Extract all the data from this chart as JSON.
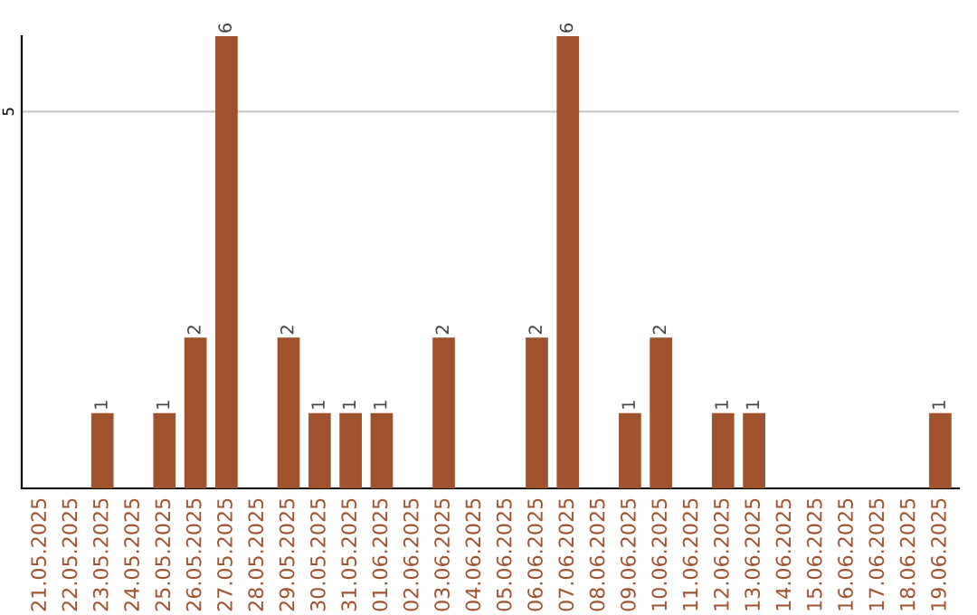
{
  "chart_data": {
    "type": "bar",
    "categories": [
      "21.05.2025",
      "22.05.2025",
      "23.05.2025",
      "24.05.2025",
      "25.05.2025",
      "26.05.2025",
      "27.05.2025",
      "28.05.2025",
      "29.05.2025",
      "30.05.2025",
      "31.05.2025",
      "01.06.2025",
      "02.06.2025",
      "03.06.2025",
      "04.06.2025",
      "05.06.2025",
      "06.06.2025",
      "07.06.2025",
      "08.06.2025",
      "09.06.2025",
      "10.06.2025",
      "11.06.2025",
      "12.06.2025",
      "13.06.2025",
      "14.06.2025",
      "15.06.2025",
      "16.06.2025",
      "17.06.2025",
      "18.06.2025",
      "19.06.2025"
    ],
    "values": [
      0,
      0,
      1,
      0,
      1,
      2,
      6,
      0,
      2,
      1,
      1,
      1,
      0,
      2,
      0,
      0,
      2,
      6,
      0,
      1,
      2,
      0,
      1,
      1,
      0,
      0,
      0,
      0,
      0,
      1
    ],
    "value_labels": [
      null,
      null,
      "1",
      null,
      "1",
      "2",
      "6",
      null,
      "2",
      "1",
      "1",
      "1",
      null,
      "2",
      null,
      null,
      "2",
      "6",
      null,
      "1",
      "2",
      null,
      "1",
      "1",
      null,
      null,
      null,
      null,
      null,
      "1"
    ],
    "color": "#a0522d",
    "ylim": [
      0,
      6
    ],
    "yticks": [
      5
    ],
    "grid": "y"
  }
}
